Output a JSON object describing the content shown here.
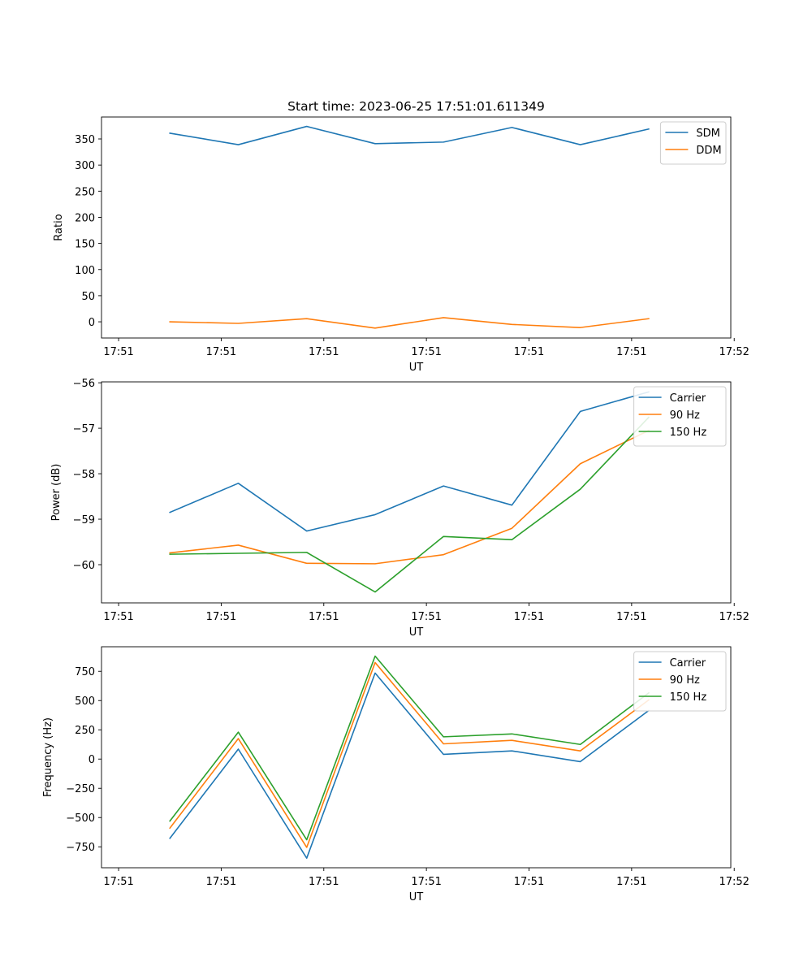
{
  "chart_data": [
    {
      "type": "line",
      "title": "Start time: 2023-06-25 17:51:01.611349",
      "xlabel": "UT",
      "ylabel": "Ratio",
      "xlim": [
        0,
        9.2
      ],
      "ylim": [
        -31,
        392
      ],
      "x_ticks": [
        0.25,
        1.75,
        3.25,
        4.75,
        6.25,
        7.75,
        9.25
      ],
      "x_ticklabels": [
        "17:51",
        "17:51",
        "17:51",
        "17:51",
        "17:51",
        "17:51",
        "17:52"
      ],
      "y_ticks": [
        0,
        50,
        100,
        150,
        200,
        250,
        300,
        350
      ],
      "y_ticklabels": [
        "0",
        "50",
        "100",
        "150",
        "200",
        "250",
        "300",
        "350"
      ],
      "x": [
        1,
        2,
        3,
        4,
        5,
        6,
        7,
        8
      ],
      "legend_position": "top-right",
      "series": [
        {
          "name": "SDM",
          "color": "#1f77b4",
          "values": [
            361,
            339,
            374,
            341,
            344,
            372,
            339,
            369
          ]
        },
        {
          "name": "DDM",
          "color": "#ff7f0e",
          "values": [
            0,
            -3,
            6,
            -12,
            8,
            -5,
            -11,
            6
          ]
        }
      ]
    },
    {
      "type": "line",
      "title": "",
      "xlabel": "UT",
      "ylabel": "Power (dB)",
      "xlim": [
        0,
        9.2
      ],
      "ylim": [
        -60.84,
        -55.98
      ],
      "x_ticks": [
        0.25,
        1.75,
        3.25,
        4.75,
        6.25,
        7.75,
        9.25
      ],
      "x_ticklabels": [
        "17:51",
        "17:51",
        "17:51",
        "17:51",
        "17:51",
        "17:51",
        "17:52"
      ],
      "y_ticks": [
        -60,
        -59,
        -58,
        -57,
        -56
      ],
      "y_ticklabels": [
        "−60",
        "−59",
        "−58",
        "−57",
        "−56"
      ],
      "x": [
        1,
        2,
        3,
        4,
        5,
        6,
        7,
        8
      ],
      "legend_position": "top-right",
      "series": [
        {
          "name": "Carrier",
          "color": "#1f77b4",
          "values": [
            -58.85,
            -58.21,
            -59.26,
            -58.9,
            -58.27,
            -58.69,
            -56.63,
            -56.2
          ]
        },
        {
          "name": "90 Hz",
          "color": "#ff7f0e",
          "values": [
            -59.74,
            -59.57,
            -59.97,
            -59.98,
            -59.78,
            -59.2,
            -57.78,
            -57.05
          ]
        },
        {
          "name": "150 Hz",
          "color": "#2ca02c",
          "values": [
            -59.77,
            -59.75,
            -59.73,
            -60.6,
            -59.38,
            -59.45,
            -58.34,
            -56.76
          ]
        }
      ]
    },
    {
      "type": "line",
      "title": "",
      "xlabel": "UT",
      "ylabel": "Frequency (Hz)",
      "xlim": [
        0,
        9.2
      ],
      "ylim": [
        -929,
        960
      ],
      "x_ticks": [
        0.25,
        1.75,
        3.25,
        4.75,
        6.25,
        7.75,
        9.25
      ],
      "x_ticklabels": [
        "17:51",
        "17:51",
        "17:51",
        "17:51",
        "17:51",
        "17:51",
        "17:52"
      ],
      "y_ticks": [
        -750,
        -500,
        -250,
        0,
        250,
        500,
        750
      ],
      "y_ticklabels": [
        "−750",
        "−500",
        "−250",
        "0",
        "250",
        "500",
        "750"
      ],
      "x": [
        1,
        2,
        3,
        4,
        5,
        6,
        7,
        8
      ],
      "legend_position": "top-right",
      "series": [
        {
          "name": "Carrier",
          "color": "#1f77b4",
          "values": [
            -677,
            85,
            -847,
            735,
            40,
            70,
            -22,
            415
          ]
        },
        {
          "name": "90 Hz",
          "color": "#ff7f0e",
          "values": [
            -590,
            175,
            -755,
            825,
            130,
            160,
            70,
            505
          ]
        },
        {
          "name": "150 Hz",
          "color": "#2ca02c",
          "values": [
            -530,
            230,
            -690,
            880,
            190,
            215,
            125,
            565
          ]
        }
      ]
    }
  ]
}
